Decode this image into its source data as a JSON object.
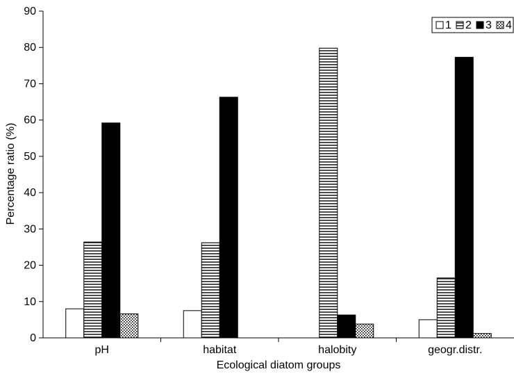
{
  "chart_data": {
    "type": "bar",
    "title": "",
    "xlabel": "Ecological diatom groups",
    "ylabel": "Percentage ratio (%)",
    "ylim": [
      0,
      90
    ],
    "yticks": [
      0,
      10,
      20,
      30,
      40,
      50,
      60,
      70,
      80,
      90
    ],
    "categories": [
      "pH",
      "habitat",
      "halobity",
      "geogr.distr."
    ],
    "series": [
      {
        "name": "1",
        "values": [
          8.0,
          7.5,
          0,
          5.0
        ],
        "pattern": "white"
      },
      {
        "name": "2",
        "values": [
          26.4,
          26.2,
          79.8,
          16.5
        ],
        "pattern": "horizontal-lines"
      },
      {
        "name": "3",
        "values": [
          59.2,
          66.3,
          6.3,
          77.3
        ],
        "pattern": "solid-black"
      },
      {
        "name": "4",
        "values": [
          6.6,
          0,
          3.8,
          1.2
        ],
        "pattern": "dots"
      }
    ],
    "grid": false,
    "legend_position": "top-right"
  }
}
